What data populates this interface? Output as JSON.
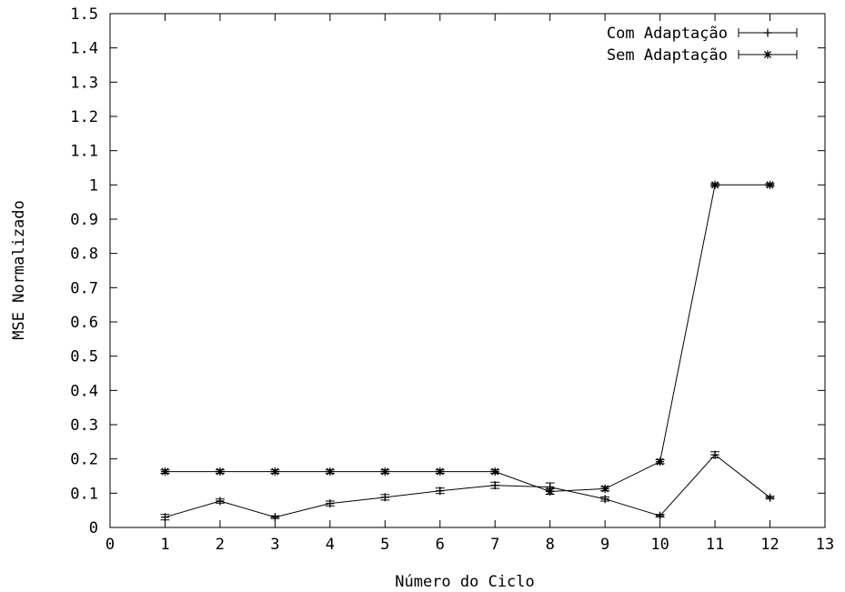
{
  "chart_data": {
    "type": "line",
    "title": "",
    "xlabel": "Número do Ciclo",
    "ylabel": "MSE Normalizado",
    "xlim": [
      0,
      13
    ],
    "ylim": [
      0,
      1.5
    ],
    "xticks": [
      "0",
      "1",
      "2",
      "3",
      "4",
      "5",
      "6",
      "7",
      "8",
      "9",
      "10",
      "11",
      "12",
      "13"
    ],
    "yticks": [
      "0",
      "0.1",
      "0.2",
      "0.3",
      "0.4",
      "0.5",
      "0.6",
      "0.7",
      "0.8",
      "0.9",
      "1",
      "1.1",
      "1.2",
      "1.3",
      "1.4",
      "1.5"
    ],
    "grid": false,
    "legend_position": "top-right",
    "x": [
      1,
      2,
      3,
      4,
      5,
      6,
      7,
      8,
      9,
      10,
      11,
      12
    ],
    "series": [
      {
        "name": "Com Adaptação",
        "marker": "plus",
        "values": [
          0.03,
          0.077,
          0.03,
          0.07,
          0.088,
          0.107,
          0.123,
          0.118,
          0.083,
          0.034,
          0.212,
          0.087
        ],
        "errors": [
          0.008,
          0.006,
          0.004,
          0.007,
          0.008,
          0.008,
          0.009,
          0.012,
          0.006,
          0.004,
          0.009,
          0.004
        ]
      },
      {
        "name": "Sem Adaptação",
        "marker": "star",
        "values": [
          0.163,
          0.163,
          0.163,
          0.163,
          0.163,
          0.163,
          0.163,
          0.105,
          0.113,
          0.192,
          1.0,
          1.0
        ],
        "errors": [
          0.005,
          0.005,
          0.005,
          0.005,
          0.005,
          0.005,
          0.005,
          0.008,
          0.006,
          0.006,
          0.004,
          0.004
        ]
      }
    ]
  }
}
